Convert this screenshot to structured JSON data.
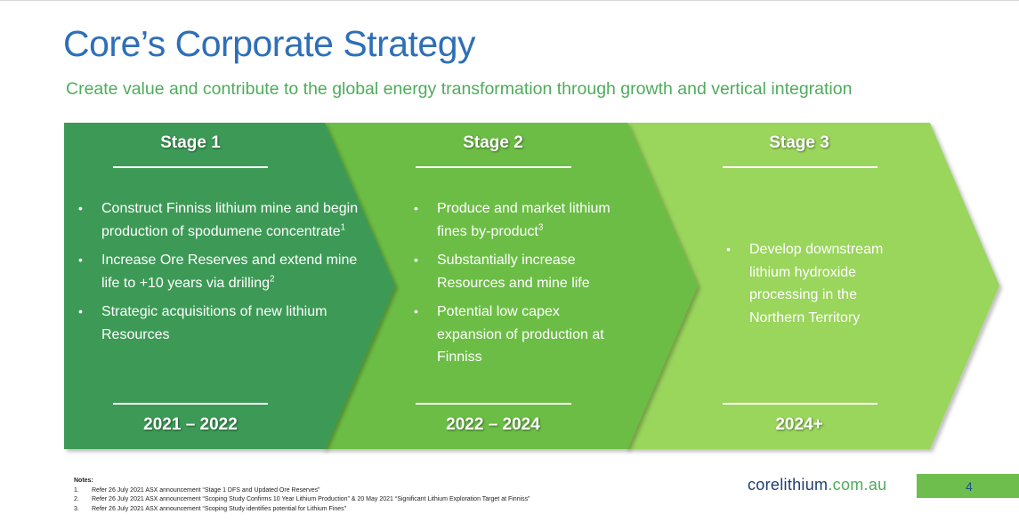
{
  "title": "Core’s Corporate Strategy",
  "subtitle": "Create value and contribute to the global energy transformation through growth and vertical integration",
  "colors": {
    "stage1": "#3d9a57",
    "stage2": "#6cbd44",
    "stage3": "#9ad55b",
    "title": "#2e6fb7",
    "subtitle": "#4eac5b"
  },
  "stages": [
    {
      "title": "Stage 1",
      "bullets": [
        {
          "text": "Construct Finniss lithium mine and begin production of spodumene concentrate",
          "sup": "1"
        },
        {
          "text": "Increase Ore Reserves and extend mine life to +10 years via drilling",
          "sup": "2"
        },
        {
          "text": "Strategic acquisitions of new lithium Resources",
          "sup": ""
        }
      ],
      "years": "2021 – 2022"
    },
    {
      "title": "Stage 2",
      "bullets": [
        {
          "text": "Produce and market lithium fines by-product",
          "sup": "3"
        },
        {
          "text": "Substantially increase Resources and mine life",
          "sup": ""
        },
        {
          "text": "Potential low capex expansion of production at Finniss",
          "sup": ""
        }
      ],
      "years": "2022 – 2024"
    },
    {
      "title": "Stage 3",
      "bullets": [
        {
          "text": "Develop downstream lithium hydroxide processing in the Northern Territory",
          "sup": ""
        }
      ],
      "years": "2024+"
    }
  ],
  "notes": {
    "heading": "Notes:",
    "items": [
      {
        "num": "1.",
        "text": "Refer 26 July 2021 ASX announcement “Stage 1 DFS and Updated Ore Reserves”"
      },
      {
        "num": "2.",
        "text": "Refer 26 July 2021 ASX announcement “Scoping Study Confirms 10 Year Lithium Production” & 20 May 2021 “Significant Lithium Exploration Target at Finniss”"
      },
      {
        "num": "3.",
        "text": "Refer 26 July 2021 ASX announcement “Scoping Study identifies potential for Lithium Fines”"
      }
    ]
  },
  "footer": {
    "site_brand": "corelithium",
    "site_domain": ".com.au",
    "page_number": "4"
  }
}
